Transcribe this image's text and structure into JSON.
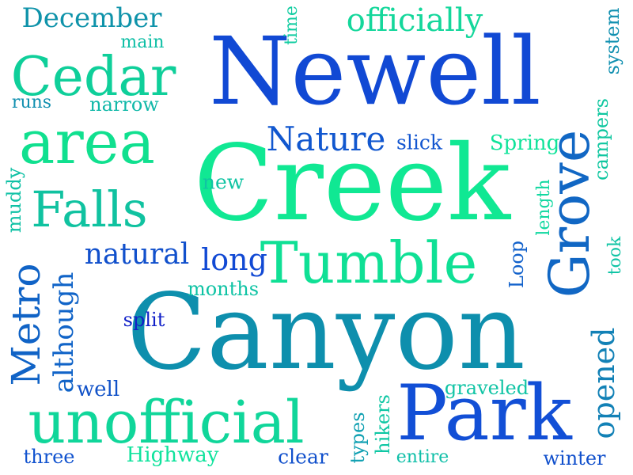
{
  "words": [
    {
      "key": "Creek",
      "text": "Creek",
      "color": "#10e893",
      "weight": 1.0
    },
    {
      "key": "Canyon",
      "text": "Canyon",
      "color": "#0e8fad",
      "weight": 0.98
    },
    {
      "key": "Newell",
      "text": "Newell",
      "color": "#1149d4",
      "weight": 0.9
    },
    {
      "key": "Park",
      "text": "Park",
      "color": "#124fd6",
      "weight": 0.7
    },
    {
      "key": "Grove",
      "text": "Grove",
      "color": "#1167c4",
      "weight": 0.55
    },
    {
      "key": "Tumble",
      "text": "Tumble",
      "color": "#0fe095",
      "weight": 0.55
    },
    {
      "key": "unofficial",
      "text": "unofficial",
      "color": "#10d69a",
      "weight": 0.55
    },
    {
      "key": "area",
      "text": "area",
      "color": "#10e08f",
      "weight": 0.6
    },
    {
      "key": "Cedar",
      "text": "Cedar",
      "color": "#0fcf9a",
      "weight": 0.55
    },
    {
      "key": "Falls",
      "text": "Falls",
      "color": "#10c2a0",
      "weight": 0.5
    },
    {
      "key": "Metro",
      "text": "Metro",
      "color": "#1063c6",
      "weight": 0.45
    },
    {
      "key": "Nature",
      "text": "Nature",
      "color": "#1157cf",
      "weight": 0.38
    },
    {
      "key": "opened",
      "text": "opened",
      "color": "#1281b6",
      "weight": 0.38
    },
    {
      "key": "although",
      "text": "although",
      "color": "#1164c8",
      "weight": 0.34
    },
    {
      "key": "natural",
      "text": "natural",
      "color": "#1150cc",
      "weight": 0.32
    },
    {
      "key": "long",
      "text": "long",
      "color": "#1149d4",
      "weight": 0.32
    },
    {
      "key": "officially",
      "text": "officially",
      "color": "#14d79b",
      "weight": 0.34
    },
    {
      "key": "December",
      "text": "December",
      "color": "#0f93aa",
      "weight": 0.3
    },
    {
      "key": "muddy",
      "text": "muddy",
      "color": "#0fc1a5",
      "weight": 0.22
    },
    {
      "key": "slick",
      "text": "slick",
      "color": "#1356d0",
      "weight": 0.22
    },
    {
      "key": "Spring",
      "text": "Spring",
      "color": "#10e39a",
      "weight": 0.22
    },
    {
      "key": "Loop",
      "text": "Loop",
      "color": "#1161cb",
      "weight": 0.22
    },
    {
      "key": "campers",
      "text": "campers",
      "color": "#10c7a0",
      "weight": 0.2
    },
    {
      "key": "system",
      "text": "system",
      "color": "#1190b0",
      "weight": 0.2
    },
    {
      "key": "length",
      "text": "length",
      "color": "#10d8a0",
      "weight": 0.18
    },
    {
      "key": "new",
      "text": "new",
      "color": "#10c4a3",
      "weight": 0.2
    },
    {
      "key": "months",
      "text": "months",
      "color": "#0ec3a4",
      "weight": 0.2
    },
    {
      "key": "split",
      "text": "split",
      "color": "#1120c8",
      "weight": 0.18
    },
    {
      "key": "took",
      "text": "took",
      "color": "#10c4a5",
      "weight": 0.18
    },
    {
      "key": "time",
      "text": "time",
      "color": "#10cca0",
      "weight": 0.17
    },
    {
      "key": "main",
      "text": "main",
      "color": "#0fbfa6",
      "weight": 0.18
    },
    {
      "key": "runs",
      "text": "runs",
      "color": "#1190b0",
      "weight": 0.18
    },
    {
      "key": "narrow",
      "text": "narrow",
      "color": "#10b8a8",
      "weight": 0.2
    },
    {
      "key": "well",
      "text": "well",
      "color": "#1152c8",
      "weight": 0.2
    },
    {
      "key": "graveled",
      "text": "graveled",
      "color": "#10c4a5",
      "weight": 0.2
    },
    {
      "key": "hikers",
      "text": "hikers",
      "color": "#0fc7a4",
      "weight": 0.2
    },
    {
      "key": "types",
      "text": "types",
      "color": "#10a0b2",
      "weight": 0.2
    },
    {
      "key": "three",
      "text": "three",
      "color": "#1153cf",
      "weight": 0.2
    },
    {
      "key": "Highway",
      "text": "Highway",
      "color": "#10e39d",
      "weight": 0.2
    },
    {
      "key": "clear",
      "text": "clear",
      "color": "#1150cc",
      "weight": 0.2
    },
    {
      "key": "entire",
      "text": "entire",
      "color": "#0fbfa8",
      "weight": 0.2
    },
    {
      "key": "winter",
      "text": "winter",
      "color": "#1150cc",
      "weight": 0.2
    }
  ]
}
